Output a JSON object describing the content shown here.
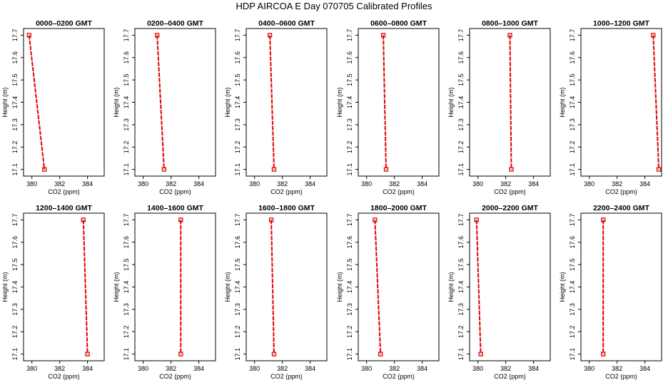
{
  "title": "HDP  AIRCOA E  Day 070705  Calibrated Profiles",
  "chart_data": [
    {
      "type": "line",
      "title": "0000–0200 GMT",
      "xlabel": "CO2 (ppm)",
      "ylabel": "Height (m)",
      "xlim": [
        379.4,
        385.2
      ],
      "ylim": [
        17.07,
        17.73
      ],
      "x_ticks": [
        380,
        382,
        384
      ],
      "y_ticks": [
        17.1,
        17.2,
        17.3,
        17.4,
        17.5,
        17.6,
        17.7
      ],
      "series": [
        {
          "color": "#e00000",
          "x": [
            379.8,
            380.9
          ],
          "y": [
            17.7,
            17.1
          ]
        }
      ]
    },
    {
      "type": "line",
      "title": "0200–0400 GMT",
      "xlabel": "CO2 (ppm)",
      "ylabel": "Height (m)",
      "xlim": [
        379.4,
        385.2
      ],
      "ylim": [
        17.07,
        17.73
      ],
      "x_ticks": [
        380,
        382,
        384
      ],
      "y_ticks": [
        17.1,
        17.2,
        17.3,
        17.4,
        17.5,
        17.6,
        17.7
      ],
      "series": [
        {
          "color": "#e00000",
          "x": [
            381.0,
            381.5
          ],
          "y": [
            17.7,
            17.1
          ]
        }
      ]
    },
    {
      "type": "line",
      "title": "0400–0600 GMT",
      "xlabel": "CO2 (ppm)",
      "ylabel": "Height (m)",
      "xlim": [
        379.4,
        385.2
      ],
      "ylim": [
        17.07,
        17.73
      ],
      "x_ticks": [
        380,
        382,
        384
      ],
      "y_ticks": [
        17.1,
        17.2,
        17.3,
        17.4,
        17.5,
        17.6,
        17.7
      ],
      "series": [
        {
          "color": "#e00000",
          "x": [
            381.1,
            381.4
          ],
          "y": [
            17.7,
            17.1
          ]
        }
      ]
    },
    {
      "type": "line",
      "title": "0600–0800 GMT",
      "xlabel": "CO2 (ppm)",
      "ylabel": "Height (m)",
      "xlim": [
        379.4,
        385.2
      ],
      "ylim": [
        17.07,
        17.73
      ],
      "x_ticks": [
        380,
        382,
        384
      ],
      "y_ticks": [
        17.1,
        17.2,
        17.3,
        17.4,
        17.5,
        17.6,
        17.7
      ],
      "series": [
        {
          "color": "#e00000",
          "x": [
            381.2,
            381.4
          ],
          "y": [
            17.7,
            17.1
          ]
        }
      ]
    },
    {
      "type": "line",
      "title": "0800–1000 GMT",
      "xlabel": "CO2 (ppm)",
      "ylabel": "Height (m)",
      "xlim": [
        379.4,
        385.2
      ],
      "ylim": [
        17.07,
        17.73
      ],
      "x_ticks": [
        380,
        382,
        384
      ],
      "y_ticks": [
        17.1,
        17.2,
        17.3,
        17.4,
        17.5,
        17.6,
        17.7
      ],
      "series": [
        {
          "color": "#e00000",
          "x": [
            382.3,
            382.4
          ],
          "y": [
            17.7,
            17.1
          ]
        }
      ]
    },
    {
      "type": "line",
      "title": "1000–1200 GMT",
      "xlabel": "CO2 (ppm)",
      "ylabel": "Height (m)",
      "xlim": [
        379.4,
        385.2
      ],
      "ylim": [
        17.07,
        17.73
      ],
      "x_ticks": [
        380,
        382,
        384
      ],
      "y_ticks": [
        17.1,
        17.2,
        17.3,
        17.4,
        17.5,
        17.6,
        17.7
      ],
      "series": [
        {
          "color": "#e00000",
          "x": [
            384.6,
            385.0
          ],
          "y": [
            17.7,
            17.1
          ]
        }
      ]
    },
    {
      "type": "line",
      "title": "1200–1400 GMT",
      "xlabel": "CO2 (ppm)",
      "ylabel": "Height (m)",
      "xlim": [
        379.4,
        385.2
      ],
      "ylim": [
        17.07,
        17.73
      ],
      "x_ticks": [
        380,
        382,
        384
      ],
      "y_ticks": [
        17.1,
        17.2,
        17.3,
        17.4,
        17.5,
        17.6,
        17.7
      ],
      "series": [
        {
          "color": "#e00000",
          "x": [
            383.7,
            384.0
          ],
          "y": [
            17.7,
            17.1
          ]
        }
      ]
    },
    {
      "type": "line",
      "title": "1400–1600 GMT",
      "xlabel": "CO2 (ppm)",
      "ylabel": "Height (m)",
      "xlim": [
        379.4,
        385.2
      ],
      "ylim": [
        17.07,
        17.73
      ],
      "x_ticks": [
        380,
        382,
        384
      ],
      "y_ticks": [
        17.1,
        17.2,
        17.3,
        17.4,
        17.5,
        17.6,
        17.7
      ],
      "series": [
        {
          "color": "#e00000",
          "x": [
            382.7,
            382.7
          ],
          "y": [
            17.7,
            17.1
          ]
        }
      ]
    },
    {
      "type": "line",
      "title": "1600–1800 GMT",
      "xlabel": "CO2 (ppm)",
      "ylabel": "Height (m)",
      "xlim": [
        379.4,
        385.2
      ],
      "ylim": [
        17.07,
        17.73
      ],
      "x_ticks": [
        380,
        382,
        384
      ],
      "y_ticks": [
        17.1,
        17.2,
        17.3,
        17.4,
        17.5,
        17.6,
        17.7
      ],
      "series": [
        {
          "color": "#e00000",
          "x": [
            381.2,
            381.4
          ],
          "y": [
            17.7,
            17.1
          ]
        }
      ]
    },
    {
      "type": "line",
      "title": "1800–2000 GMT",
      "xlabel": "CO2 (ppm)",
      "ylabel": "Height (m)",
      "xlim": [
        379.4,
        385.2
      ],
      "ylim": [
        17.07,
        17.73
      ],
      "x_ticks": [
        380,
        382,
        384
      ],
      "y_ticks": [
        17.1,
        17.2,
        17.3,
        17.4,
        17.5,
        17.6,
        17.7
      ],
      "series": [
        {
          "color": "#e00000",
          "x": [
            380.6,
            381.0
          ],
          "y": [
            17.7,
            17.1
          ]
        }
      ]
    },
    {
      "type": "line",
      "title": "2000–2200 GMT",
      "xlabel": "CO2 (ppm)",
      "ylabel": "Height (m)",
      "xlim": [
        379.4,
        385.2
      ],
      "ylim": [
        17.07,
        17.73
      ],
      "x_ticks": [
        380,
        382,
        384
      ],
      "y_ticks": [
        17.1,
        17.2,
        17.3,
        17.4,
        17.5,
        17.6,
        17.7
      ],
      "series": [
        {
          "color": "#e00000",
          "x": [
            379.9,
            380.2
          ],
          "y": [
            17.7,
            17.1
          ]
        }
      ]
    },
    {
      "type": "line",
      "title": "2200–2400 GMT",
      "xlabel": "CO2 (ppm)",
      "ylabel": "Height (m)",
      "xlim": [
        379.4,
        385.2
      ],
      "ylim": [
        17.07,
        17.73
      ],
      "x_ticks": [
        380,
        382,
        384
      ],
      "y_ticks": [
        17.1,
        17.2,
        17.3,
        17.4,
        17.5,
        17.6,
        17.7
      ],
      "series": [
        {
          "color": "#e00000",
          "x": [
            381.0,
            381.0
          ],
          "y": [
            17.7,
            17.1
          ]
        }
      ]
    }
  ]
}
